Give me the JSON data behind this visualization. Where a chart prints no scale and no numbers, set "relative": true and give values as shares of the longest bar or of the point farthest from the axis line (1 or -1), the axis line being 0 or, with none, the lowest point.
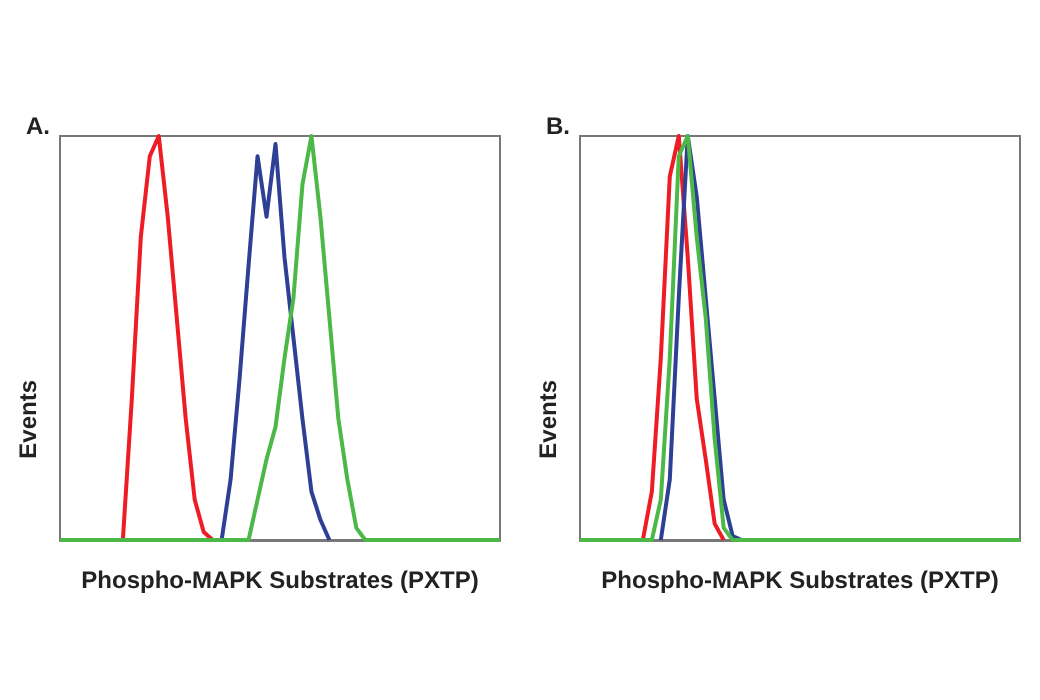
{
  "chart_data": [
    {
      "type": "line",
      "title": "A.",
      "xlabel": "Phospho-MAPK Substrates (PXTP)",
      "ylabel": "Events",
      "relative": true,
      "grid": false,
      "marker": "none",
      "categories": [
        null,
        null,
        null,
        null,
        null,
        null,
        null,
        null,
        null,
        null,
        null,
        null,
        null,
        null,
        null,
        null,
        null,
        null,
        null,
        null,
        null,
        null,
        null,
        null,
        null,
        null,
        null,
        null,
        null,
        null,
        null,
        null,
        null,
        null,
        null,
        null,
        null,
        null,
        null,
        null,
        null,
        null,
        null,
        null,
        null,
        null,
        null,
        null,
        null,
        null
      ],
      "series": [
        {
          "color": "#ee1c25",
          "values": [
            null,
            null,
            null,
            null,
            null,
            null,
            null,
            0,
            0.35,
            0.75,
            0.95,
            1.0,
            0.8,
            0.55,
            0.3,
            0.1,
            0.02,
            0,
            null,
            null,
            null,
            null,
            null,
            null,
            null,
            null,
            null,
            null,
            null,
            null,
            null,
            null,
            null,
            null,
            null,
            null,
            null,
            null,
            null,
            null,
            null,
            null,
            null,
            null,
            null,
            null,
            null,
            null,
            null,
            null
          ]
        },
        {
          "color": "#2e3f96",
          "values": [
            null,
            null,
            null,
            null,
            null,
            null,
            null,
            null,
            null,
            null,
            null,
            null,
            null,
            null,
            null,
            null,
            null,
            null,
            0,
            0.15,
            0.4,
            0.68,
            0.95,
            0.8,
            0.98,
            0.7,
            0.5,
            0.3,
            0.12,
            0.05,
            0,
            null,
            null,
            null,
            null,
            null,
            null,
            null,
            null,
            null,
            null,
            null,
            null,
            null,
            null,
            null,
            null,
            null,
            null,
            null
          ]
        },
        {
          "color": "#4cb848",
          "values": [
            0,
            0,
            0,
            0,
            0,
            0,
            0,
            0,
            0,
            0,
            0,
            0,
            0,
            0,
            0,
            0,
            0,
            0,
            0,
            0,
            0,
            0,
            0.1,
            0.2,
            0.28,
            0.45,
            0.6,
            0.88,
            1.0,
            0.8,
            0.55,
            0.3,
            0.15,
            0.03,
            0,
            0,
            0,
            0,
            0,
            0,
            0,
            0,
            0,
            0,
            0,
            0,
            0,
            0,
            0,
            0
          ]
        }
      ]
    },
    {
      "type": "line",
      "title": "B.",
      "xlabel": "Phospho-MAPK Substrates (PXTP)",
      "ylabel": "Events",
      "relative": true,
      "grid": false,
      "marker": "none",
      "categories": [
        null,
        null,
        null,
        null,
        null,
        null,
        null,
        null,
        null,
        null,
        null,
        null,
        null,
        null,
        null,
        null,
        null,
        null,
        null,
        null,
        null,
        null,
        null,
        null,
        null,
        null,
        null,
        null,
        null,
        null,
        null,
        null,
        null,
        null,
        null,
        null,
        null,
        null,
        null,
        null,
        null,
        null,
        null,
        null,
        null,
        null,
        null,
        null,
        null,
        null
      ],
      "series": [
        {
          "color": "#ee1c25",
          "values": [
            null,
            null,
            null,
            null,
            null,
            null,
            null,
            0,
            0.12,
            0.45,
            0.9,
            1.0,
            0.7,
            0.35,
            0.2,
            0.04,
            0,
            null,
            null,
            null,
            null,
            null,
            null,
            null,
            null,
            null,
            null,
            null,
            null,
            null,
            null,
            null,
            null,
            null,
            null,
            null,
            null,
            null,
            null,
            null,
            null,
            null,
            null,
            null,
            null,
            null,
            null,
            null,
            null,
            null
          ]
        },
        {
          "color": "#2e3f96",
          "values": [
            null,
            null,
            null,
            null,
            null,
            null,
            null,
            null,
            null,
            0,
            0.15,
            0.6,
            1.0,
            0.85,
            0.6,
            0.35,
            0.1,
            0.01,
            0,
            null,
            null,
            null,
            null,
            null,
            null,
            null,
            null,
            null,
            null,
            null,
            null,
            null,
            null,
            null,
            null,
            null,
            null,
            null,
            null,
            null,
            null,
            null,
            null,
            null,
            null,
            null,
            null,
            null,
            null,
            null
          ]
        },
        {
          "color": "#4cb848",
          "values": [
            0,
            0,
            0,
            0,
            0,
            0,
            0,
            0,
            0,
            0.1,
            0.45,
            0.95,
            1.0,
            0.75,
            0.55,
            0.25,
            0.03,
            0,
            0,
            0,
            0,
            0,
            0,
            0,
            0,
            0,
            0,
            0,
            0,
            0,
            0,
            0,
            0,
            0,
            0,
            0,
            0,
            0,
            0,
            0,
            0,
            0,
            0,
            0,
            0,
            0,
            0,
            0,
            0,
            0
          ]
        }
      ]
    }
  ]
}
